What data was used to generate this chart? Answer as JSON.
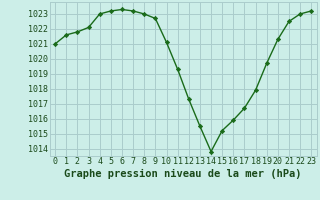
{
  "x": [
    0,
    1,
    2,
    3,
    4,
    5,
    6,
    7,
    8,
    9,
    10,
    11,
    12,
    13,
    14,
    15,
    16,
    17,
    18,
    19,
    20,
    21,
    22,
    23
  ],
  "y": [
    1021.0,
    1021.6,
    1021.8,
    1022.1,
    1023.0,
    1023.2,
    1023.3,
    1023.2,
    1023.0,
    1022.7,
    1021.1,
    1019.3,
    1017.3,
    1015.5,
    1013.8,
    1015.2,
    1015.9,
    1016.7,
    1017.9,
    1019.7,
    1021.3,
    1022.5,
    1023.0,
    1023.2
  ],
  "line_color": "#1a6b1a",
  "marker": "D",
  "marker_size": 2.2,
  "bg_color": "#cceee8",
  "grid_color": "#aacccc",
  "xlabel": "Graphe pression niveau de la mer (hPa)",
  "xlabel_fontsize": 7.5,
  "ylabel_ticks": [
    1014,
    1015,
    1016,
    1017,
    1018,
    1019,
    1020,
    1021,
    1022,
    1023
  ],
  "ylim": [
    1013.5,
    1023.8
  ],
  "xlim": [
    -0.5,
    23.5
  ],
  "xticks": [
    0,
    1,
    2,
    3,
    4,
    5,
    6,
    7,
    8,
    9,
    10,
    11,
    12,
    13,
    14,
    15,
    16,
    17,
    18,
    19,
    20,
    21,
    22,
    23
  ],
  "tick_fontsize": 6.0,
  "linewidth": 1.0
}
